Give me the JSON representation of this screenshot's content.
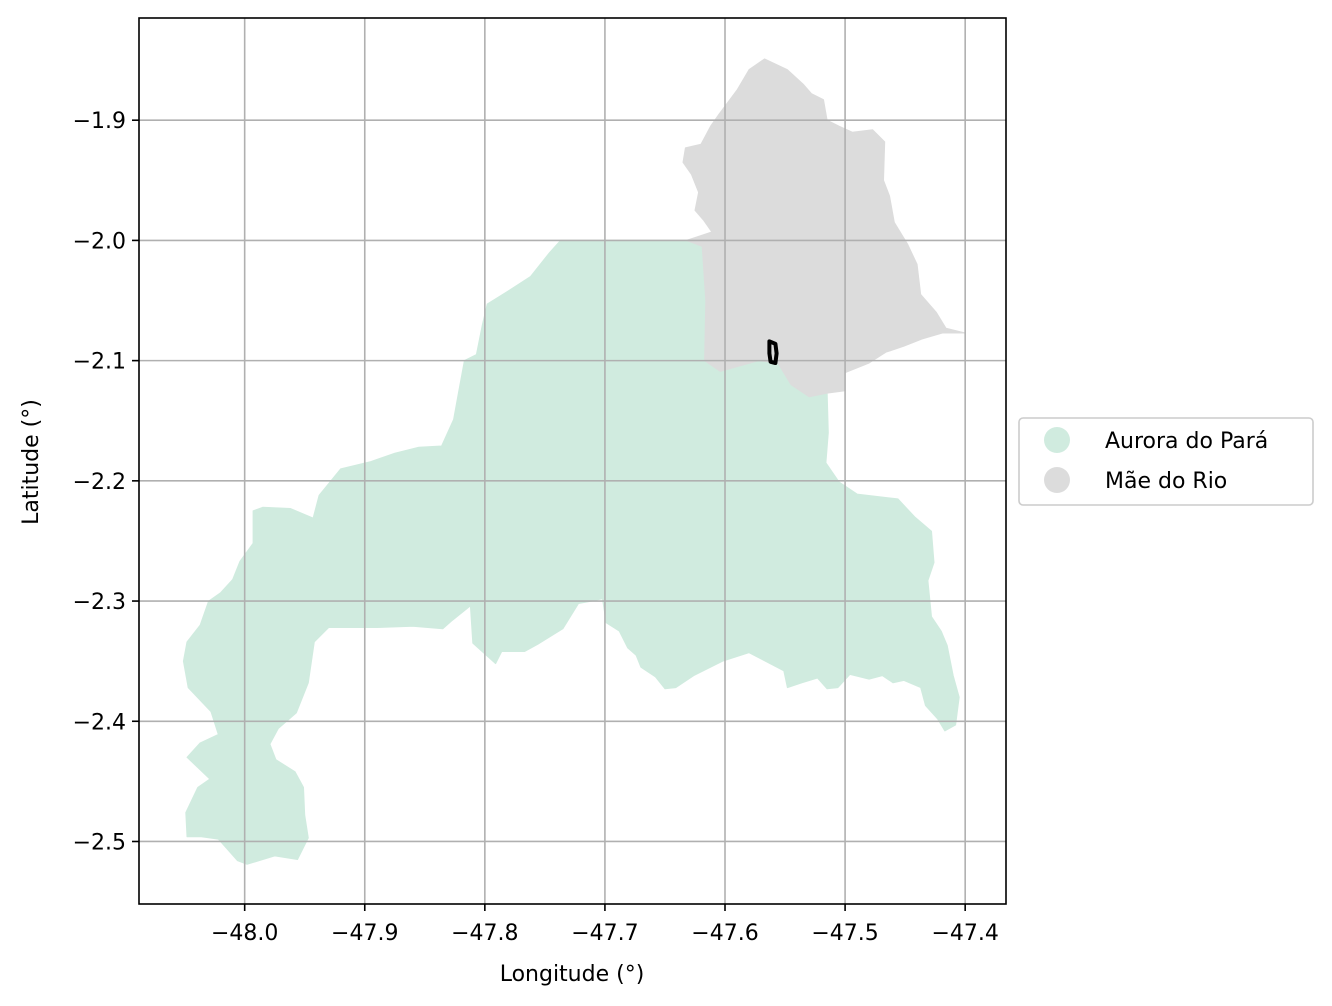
{
  "axes": {
    "xlabel": "Longitude (°)",
    "ylabel": "Latitude (°)",
    "xlim": [
      -48.088,
      -47.366
    ],
    "ylim": [
      -2.552,
      -1.815
    ],
    "xticks": [
      {
        "value": -48.0,
        "label": "−48.0"
      },
      {
        "value": -47.9,
        "label": "−47.9"
      },
      {
        "value": -47.8,
        "label": "−47.8"
      },
      {
        "value": -47.7,
        "label": "−47.7"
      },
      {
        "value": -47.6,
        "label": "−47.6"
      },
      {
        "value": -47.5,
        "label": "−47.5"
      },
      {
        "value": -47.4,
        "label": "−47.4"
      }
    ],
    "yticks": [
      {
        "value": -1.9,
        "label": "−1.9"
      },
      {
        "value": -2.0,
        "label": "−2.0"
      },
      {
        "value": -2.1,
        "label": "−2.1"
      },
      {
        "value": -2.2,
        "label": "−2.2"
      },
      {
        "value": -2.3,
        "label": "−2.3"
      },
      {
        "value": -2.4,
        "label": "−2.4"
      },
      {
        "value": -2.5,
        "label": "−2.5"
      }
    ],
    "grid": true
  },
  "legend": {
    "placement": "outside-right",
    "items": [
      {
        "label": "Aurora do Pará",
        "color": "#d0ebdf"
      },
      {
        "label": "Mãe do Rio",
        "color": "#dcdcdc"
      }
    ]
  },
  "regions": [
    {
      "name": "Aurora do Pará",
      "color": "#d0ebdf",
      "coords": [
        [
          -47.737,
          -2.0
        ],
        [
          -47.632,
          -2.0
        ],
        [
          -47.619,
          -2.005
        ],
        [
          -47.616,
          -2.05
        ],
        [
          -47.617,
          -2.1
        ],
        [
          -47.604,
          -2.109
        ],
        [
          -47.572,
          -2.1
        ],
        [
          -47.556,
          -2.102
        ],
        [
          -47.545,
          -2.12
        ],
        [
          -47.53,
          -2.13
        ],
        [
          -47.515,
          -2.125
        ],
        [
          -47.514,
          -2.16
        ],
        [
          -47.516,
          -2.185
        ],
        [
          -47.505,
          -2.201
        ],
        [
          -47.49,
          -2.211
        ],
        [
          -47.456,
          -2.215
        ],
        [
          -47.442,
          -2.23
        ],
        [
          -47.428,
          -2.242
        ],
        [
          -47.426,
          -2.268
        ],
        [
          -47.431,
          -2.283
        ],
        [
          -47.428,
          -2.313
        ],
        [
          -47.42,
          -2.325
        ],
        [
          -47.415,
          -2.337
        ],
        [
          -47.41,
          -2.362
        ],
        [
          -47.405,
          -2.38
        ],
        [
          -47.408,
          -2.403
        ],
        [
          -47.417,
          -2.408
        ],
        [
          -47.423,
          -2.398
        ],
        [
          -47.433,
          -2.387
        ],
        [
          -47.437,
          -2.372
        ],
        [
          -47.451,
          -2.366
        ],
        [
          -47.46,
          -2.368
        ],
        [
          -47.469,
          -2.362
        ],
        [
          -47.48,
          -2.365
        ],
        [
          -47.496,
          -2.361
        ],
        [
          -47.506,
          -2.372
        ],
        [
          -47.515,
          -2.373
        ],
        [
          -47.523,
          -2.364
        ],
        [
          -47.536,
          -2.368
        ],
        [
          -47.548,
          -2.372
        ],
        [
          -47.551,
          -2.358
        ],
        [
          -47.58,
          -2.343
        ],
        [
          -47.602,
          -2.35
        ],
        [
          -47.626,
          -2.362
        ],
        [
          -47.641,
          -2.372
        ],
        [
          -47.65,
          -2.373
        ],
        [
          -47.658,
          -2.363
        ],
        [
          -47.67,
          -2.355
        ],
        [
          -47.674,
          -2.345
        ],
        [
          -47.681,
          -2.339
        ],
        [
          -47.688,
          -2.325
        ],
        [
          -47.699,
          -2.318
        ],
        [
          -47.702,
          -2.298
        ],
        [
          -47.711,
          -2.3
        ],
        [
          -47.722,
          -2.302
        ],
        [
          -47.735,
          -2.323
        ],
        [
          -47.756,
          -2.336
        ],
        [
          -47.767,
          -2.342
        ],
        [
          -47.786,
          -2.342
        ],
        [
          -47.791,
          -2.352
        ],
        [
          -47.81,
          -2.335
        ],
        [
          -47.812,
          -2.304
        ],
        [
          -47.827,
          -2.316
        ],
        [
          -47.835,
          -2.323
        ],
        [
          -47.86,
          -2.321
        ],
        [
          -47.89,
          -2.322
        ],
        [
          -47.93,
          -2.322
        ],
        [
          -47.942,
          -2.334
        ],
        [
          -47.947,
          -2.368
        ],
        [
          -47.957,
          -2.393
        ],
        [
          -47.972,
          -2.406
        ],
        [
          -47.979,
          -2.419
        ],
        [
          -47.974,
          -2.432
        ],
        [
          -47.958,
          -2.442
        ],
        [
          -47.951,
          -2.455
        ],
        [
          -47.95,
          -2.478
        ],
        [
          -47.947,
          -2.497
        ],
        [
          -47.956,
          -2.515
        ],
        [
          -47.975,
          -2.512
        ],
        [
          -47.998,
          -2.519
        ],
        [
          -48.006,
          -2.516
        ],
        [
          -48.022,
          -2.498
        ],
        [
          -48.036,
          -2.496
        ],
        [
          -48.048,
          -2.496
        ],
        [
          -48.049,
          -2.476
        ],
        [
          -48.039,
          -2.455
        ],
        [
          -48.029,
          -2.448
        ],
        [
          -48.048,
          -2.43
        ],
        [
          -48.037,
          -2.418
        ],
        [
          -48.022,
          -2.411
        ],
        [
          -48.028,
          -2.392
        ],
        [
          -48.047,
          -2.372
        ],
        [
          -48.051,
          -2.35
        ],
        [
          -48.048,
          -2.334
        ],
        [
          -48.037,
          -2.32
        ],
        [
          -48.03,
          -2.3
        ],
        [
          -48.02,
          -2.293
        ],
        [
          -48.01,
          -2.282
        ],
        [
          -48.004,
          -2.267
        ],
        [
          -47.993,
          -2.252
        ],
        [
          -47.993,
          -2.225
        ],
        [
          -47.985,
          -2.222
        ],
        [
          -47.962,
          -2.223
        ],
        [
          -47.943,
          -2.231
        ],
        [
          -47.938,
          -2.212
        ],
        [
          -47.92,
          -2.19
        ],
        [
          -47.895,
          -2.184
        ],
        [
          -47.875,
          -2.177
        ],
        [
          -47.855,
          -2.172
        ],
        [
          -47.836,
          -2.171
        ],
        [
          -47.826,
          -2.149
        ],
        [
          -47.822,
          -2.127
        ],
        [
          -47.817,
          -2.1
        ],
        [
          -47.807,
          -2.095
        ],
        [
          -47.802,
          -2.07
        ],
        [
          -47.798,
          -2.053
        ],
        [
          -47.782,
          -2.043
        ],
        [
          -47.762,
          -2.03
        ],
        [
          -47.746,
          -2.01
        ]
      ]
    },
    {
      "name": "Mãe do Rio",
      "color": "#dcdcdc",
      "coords": [
        [
          -47.567,
          -1.849
        ],
        [
          -47.548,
          -1.858
        ],
        [
          -47.535,
          -1.87
        ],
        [
          -47.528,
          -1.878
        ],
        [
          -47.518,
          -1.883
        ],
        [
          -47.515,
          -1.9
        ],
        [
          -47.505,
          -1.905
        ],
        [
          -47.494,
          -1.91
        ],
        [
          -47.477,
          -1.908
        ],
        [
          -47.467,
          -1.918
        ],
        [
          -47.468,
          -1.95
        ],
        [
          -47.463,
          -1.963
        ],
        [
          -47.459,
          -1.985
        ],
        [
          -47.448,
          -2.003
        ],
        [
          -47.44,
          -2.02
        ],
        [
          -47.437,
          -2.045
        ],
        [
          -47.424,
          -2.06
        ],
        [
          -47.416,
          -2.073
        ],
        [
          -47.4,
          -2.077
        ],
        [
          -47.419,
          -2.077
        ],
        [
          -47.436,
          -2.082
        ],
        [
          -47.451,
          -2.088
        ],
        [
          -47.466,
          -2.093
        ],
        [
          -47.48,
          -2.102
        ],
        [
          -47.5,
          -2.11
        ],
        [
          -47.5,
          -2.125
        ],
        [
          -47.515,
          -2.127
        ],
        [
          -47.53,
          -2.13
        ],
        [
          -47.545,
          -2.12
        ],
        [
          -47.556,
          -2.102
        ],
        [
          -47.572,
          -2.1
        ],
        [
          -47.604,
          -2.109
        ],
        [
          -47.617,
          -2.1
        ],
        [
          -47.616,
          -2.05
        ],
        [
          -47.619,
          -2.005
        ],
        [
          -47.632,
          -2.0
        ],
        [
          -47.611,
          -1.993
        ],
        [
          -47.618,
          -1.983
        ],
        [
          -47.625,
          -1.975
        ],
        [
          -47.622,
          -1.96
        ],
        [
          -47.628,
          -1.945
        ],
        [
          -47.635,
          -1.935
        ],
        [
          -47.633,
          -1.923
        ],
        [
          -47.62,
          -1.92
        ],
        [
          -47.612,
          -1.905
        ],
        [
          -47.605,
          -1.895
        ],
        [
          -47.59,
          -1.875
        ],
        [
          -47.58,
          -1.858
        ]
      ]
    }
  ],
  "outlines": [
    {
      "name": "small-boundary",
      "coords": [
        [
          -47.563,
          -2.084
        ],
        [
          -47.558,
          -2.086
        ],
        [
          -47.557,
          -2.094
        ],
        [
          -47.558,
          -2.102
        ],
        [
          -47.562,
          -2.101
        ],
        [
          -47.563,
          -2.094
        ]
      ]
    }
  ]
}
